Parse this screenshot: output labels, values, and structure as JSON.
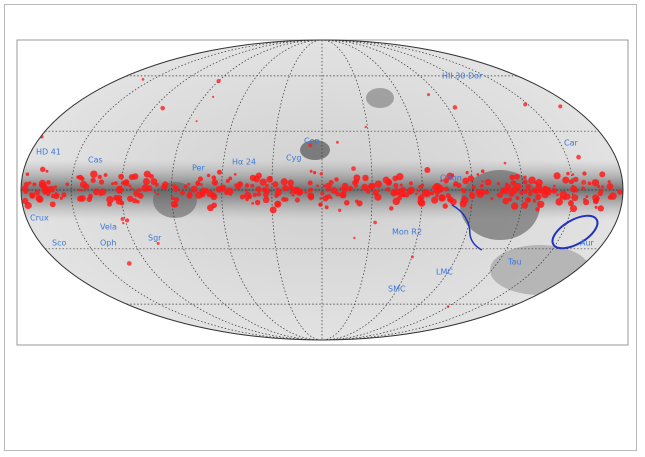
{
  "labels": [
    "HII 30 Dor",
    "HD 41",
    "Cas",
    "Per",
    "Hα 24",
    "Cyg",
    "Cep",
    "Car",
    "Orion",
    "Crux",
    "Vela",
    "Sco",
    "Oph",
    "Sgr",
    "Mon R2",
    "Aur",
    "Tau",
    "LMC",
    "SMC"
  ]
}
